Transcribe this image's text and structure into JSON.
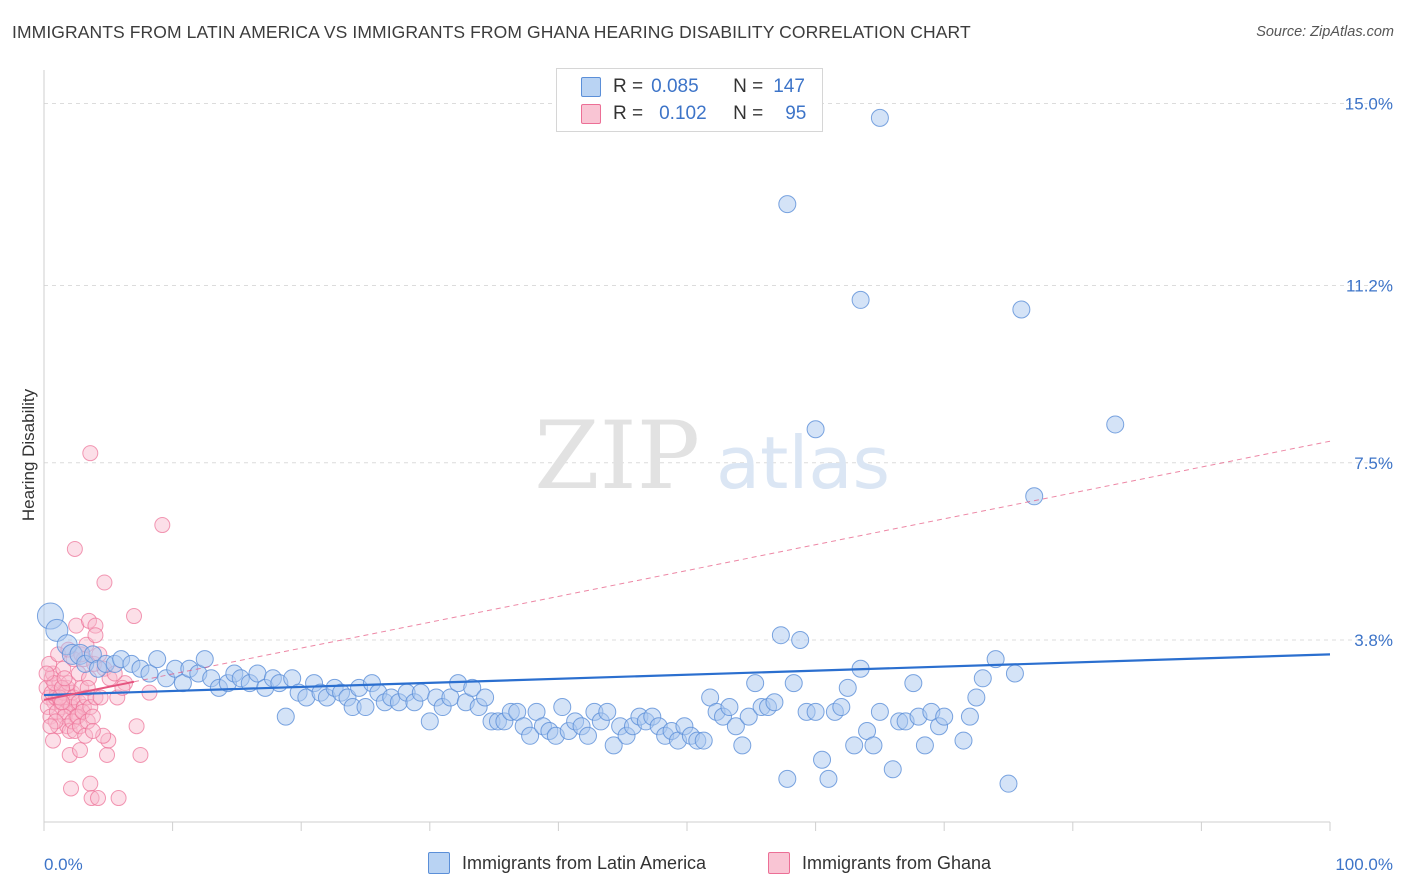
{
  "title": "IMMIGRANTS FROM LATIN AMERICA VS IMMIGRANTS FROM GHANA HEARING DISABILITY CORRELATION CHART",
  "source": "Source: ZipAtlas.com",
  "watermark": {
    "zip": "ZIP",
    "atlas": "atlas"
  },
  "legend": {
    "rows": [
      {
        "r_label": "R =",
        "r_value": "0.085",
        "n_label": "N =",
        "n_value": "147"
      },
      {
        "r_label": "R =",
        "r_value": "0.102",
        "n_label": "N =",
        "n_value": "95"
      }
    ]
  },
  "bottom_legend": [
    "Immigrants from Latin America",
    "Immigrants from Ghana"
  ],
  "colors": {
    "blue_fill": "#a9c8f0",
    "blue_stroke": "#5b8fd8",
    "blue_line": "#2b6fcf",
    "pink_fill": "#f8b9cb",
    "pink_stroke": "#ec6f96",
    "pink_line": "#e5547f",
    "tick_text": "#3d74c8",
    "grid": "#dcdcdc"
  },
  "chart_data": {
    "type": "scatter",
    "title": "IMMIGRANTS FROM LATIN AMERICA VS IMMIGRANTS FROM GHANA HEARING DISABILITY CORRELATION CHART",
    "xlabel": "",
    "ylabel": "Hearing Disability",
    "x_unit": "%",
    "y_unit": "%",
    "xlim": [
      0,
      100
    ],
    "ylim": [
      0,
      15.7
    ],
    "x_tick_labels": [
      {
        "value": 0,
        "label": "0.0%"
      },
      {
        "value": 100,
        "label": "100.0%"
      }
    ],
    "y_tick_labels": [
      {
        "value": 3.8,
        "label": "3.8%"
      },
      {
        "value": 7.5,
        "label": "7.5%"
      },
      {
        "value": 11.2,
        "label": "11.2%"
      },
      {
        "value": 15.0,
        "label": "15.0%"
      }
    ],
    "grid": true,
    "legend_position": "top-center",
    "series": [
      {
        "name": "Immigrants from Latin America",
        "color": "#5b8fd8",
        "R": 0.085,
        "N": 147,
        "trend": {
          "x": [
            0,
            100
          ],
          "y": [
            2.65,
            3.5
          ]
        },
        "points": [
          [
            0.5,
            4.3
          ],
          [
            1.0,
            4.0
          ],
          [
            1.8,
            3.7
          ],
          [
            2.2,
            3.5
          ],
          [
            2.8,
            3.5
          ],
          [
            3.2,
            3.3
          ],
          [
            3.8,
            3.5
          ],
          [
            4.2,
            3.2
          ],
          [
            4.8,
            3.3
          ],
          [
            5.5,
            3.3
          ],
          [
            6.0,
            3.4
          ],
          [
            6.8,
            3.3
          ],
          [
            7.5,
            3.2
          ],
          [
            8.2,
            3.1
          ],
          [
            8.8,
            3.4
          ],
          [
            9.5,
            3.0
          ],
          [
            10.2,
            3.2
          ],
          [
            10.8,
            2.9
          ],
          [
            11.3,
            3.2
          ],
          [
            12.0,
            3.1
          ],
          [
            12.5,
            3.4
          ],
          [
            13.0,
            3.0
          ],
          [
            13.6,
            2.8
          ],
          [
            14.3,
            2.9
          ],
          [
            14.8,
            3.1
          ],
          [
            15.3,
            3.0
          ],
          [
            16.0,
            2.9
          ],
          [
            16.6,
            3.1
          ],
          [
            17.2,
            2.8
          ],
          [
            17.8,
            3.0
          ],
          [
            18.3,
            2.9
          ],
          [
            18.8,
            2.2
          ],
          [
            19.3,
            3.0
          ],
          [
            19.8,
            2.7
          ],
          [
            20.4,
            2.6
          ],
          [
            21.0,
            2.9
          ],
          [
            21.5,
            2.7
          ],
          [
            22.0,
            2.6
          ],
          [
            22.6,
            2.8
          ],
          [
            23.1,
            2.7
          ],
          [
            23.6,
            2.6
          ],
          [
            24.0,
            2.4
          ],
          [
            24.5,
            2.8
          ],
          [
            25.0,
            2.4
          ],
          [
            25.5,
            2.9
          ],
          [
            26.0,
            2.7
          ],
          [
            26.5,
            2.5
          ],
          [
            27.0,
            2.6
          ],
          [
            27.6,
            2.5
          ],
          [
            28.2,
            2.7
          ],
          [
            28.8,
            2.5
          ],
          [
            29.3,
            2.7
          ],
          [
            30.0,
            2.1
          ],
          [
            30.5,
            2.6
          ],
          [
            31.0,
            2.4
          ],
          [
            31.6,
            2.6
          ],
          [
            32.2,
            2.9
          ],
          [
            32.8,
            2.5
          ],
          [
            33.3,
            2.8
          ],
          [
            33.8,
            2.4
          ],
          [
            34.3,
            2.6
          ],
          [
            34.8,
            2.1
          ],
          [
            35.3,
            2.1
          ],
          [
            35.8,
            2.1
          ],
          [
            36.3,
            2.3
          ],
          [
            36.8,
            2.3
          ],
          [
            37.3,
            2.0
          ],
          [
            37.8,
            1.8
          ],
          [
            38.3,
            2.3
          ],
          [
            38.8,
            2.0
          ],
          [
            39.3,
            1.9
          ],
          [
            39.8,
            1.8
          ],
          [
            40.3,
            2.4
          ],
          [
            40.8,
            1.9
          ],
          [
            41.3,
            2.1
          ],
          [
            41.8,
            2.0
          ],
          [
            42.3,
            1.8
          ],
          [
            42.8,
            2.3
          ],
          [
            43.3,
            2.1
          ],
          [
            43.8,
            2.3
          ],
          [
            44.3,
            1.6
          ],
          [
            44.8,
            2.0
          ],
          [
            45.3,
            1.8
          ],
          [
            45.8,
            2.0
          ],
          [
            46.3,
            2.2
          ],
          [
            46.8,
            2.1
          ],
          [
            47.3,
            2.2
          ],
          [
            47.8,
            2.0
          ],
          [
            48.3,
            1.8
          ],
          [
            48.8,
            1.9
          ],
          [
            49.3,
            1.7
          ],
          [
            49.8,
            2.0
          ],
          [
            50.3,
            1.8
          ],
          [
            50.8,
            1.7
          ],
          [
            51.3,
            1.7
          ],
          [
            51.8,
            2.6
          ],
          [
            52.3,
            2.3
          ],
          [
            52.8,
            2.2
          ],
          [
            53.3,
            2.4
          ],
          [
            53.8,
            2.0
          ],
          [
            54.3,
            1.6
          ],
          [
            54.8,
            2.2
          ],
          [
            55.3,
            2.9
          ],
          [
            55.8,
            2.4
          ],
          [
            56.3,
            2.4
          ],
          [
            56.8,
            2.5
          ],
          [
            57.3,
            3.9
          ],
          [
            57.8,
            0.9
          ],
          [
            58.3,
            2.9
          ],
          [
            58.8,
            3.8
          ],
          [
            59.3,
            2.3
          ],
          [
            60.0,
            2.3
          ],
          [
            60.5,
            1.3
          ],
          [
            61.0,
            0.9
          ],
          [
            61.5,
            2.3
          ],
          [
            62.0,
            2.4
          ],
          [
            62.5,
            2.8
          ],
          [
            63.0,
            1.6
          ],
          [
            63.5,
            3.2
          ],
          [
            64.0,
            1.9
          ],
          [
            64.5,
            1.6
          ],
          [
            65.0,
            2.3
          ],
          [
            66.0,
            1.1
          ],
          [
            66.5,
            2.1
          ],
          [
            67.0,
            2.1
          ],
          [
            67.6,
            2.9
          ],
          [
            68.0,
            2.2
          ],
          [
            68.5,
            1.6
          ],
          [
            69.0,
            2.3
          ],
          [
            69.6,
            2.0
          ],
          [
            70.0,
            2.2
          ],
          [
            71.5,
            1.7
          ],
          [
            72.0,
            2.2
          ],
          [
            72.5,
            2.6
          ],
          [
            73.0,
            3.0
          ],
          [
            74.0,
            3.4
          ],
          [
            75.0,
            0.8
          ],
          [
            75.5,
            3.1
          ],
          [
            57.8,
            12.9
          ],
          [
            60.0,
            8.2
          ],
          [
            63.5,
            10.9
          ],
          [
            65.0,
            14.7
          ],
          [
            76.0,
            10.7
          ],
          [
            77.0,
            6.8
          ],
          [
            83.3,
            8.3
          ]
        ]
      },
      {
        "name": "Immigrants from Ghana",
        "color": "#ec6f96",
        "R": 0.102,
        "N": 95,
        "trend": {
          "x": [
            0,
            100
          ],
          "y": [
            2.55,
            7.95
          ]
        },
        "trend_solid_to_x": 7,
        "points": [
          [
            0.2,
            2.8
          ],
          [
            0.4,
            2.6
          ],
          [
            0.6,
            3.0
          ],
          [
            0.8,
            2.5
          ],
          [
            1.0,
            2.7
          ],
          [
            1.2,
            2.9
          ],
          [
            1.4,
            2.4
          ],
          [
            1.6,
            2.6
          ],
          [
            1.8,
            2.8
          ],
          [
            2.0,
            2.5
          ],
          [
            2.2,
            2.7
          ],
          [
            2.4,
            2.3
          ],
          [
            0.3,
            2.4
          ],
          [
            0.5,
            2.2
          ],
          [
            0.7,
            3.1
          ],
          [
            0.9,
            2.6
          ],
          [
            1.1,
            2.0
          ],
          [
            1.3,
            2.5
          ],
          [
            1.5,
            2.7
          ],
          [
            1.7,
            2.3
          ],
          [
            1.9,
            2.9
          ],
          [
            2.1,
            2.4
          ],
          [
            2.3,
            2.6
          ],
          [
            2.5,
            2.2
          ],
          [
            2.7,
            2.5
          ],
          [
            2.9,
            2.8
          ],
          [
            3.1,
            2.4
          ],
          [
            3.3,
            2.6
          ],
          [
            0.6,
            2.7
          ],
          [
            0.8,
            2.9
          ],
          [
            1.0,
            2.3
          ],
          [
            1.2,
            2.6
          ],
          [
            1.4,
            2.8
          ],
          [
            1.6,
            2.2
          ],
          [
            1.8,
            2.0
          ],
          [
            2.0,
            1.9
          ],
          [
            2.2,
            2.1
          ],
          [
            2.4,
            1.9
          ],
          [
            2.6,
            2.2
          ],
          [
            2.8,
            2.0
          ],
          [
            3.0,
            2.3
          ],
          [
            3.2,
            1.8
          ],
          [
            3.4,
            2.1
          ],
          [
            3.6,
            2.4
          ],
          [
            3.8,
            2.2
          ],
          [
            4.0,
            2.6
          ],
          [
            0.4,
            3.3
          ],
          [
            1.1,
            3.5
          ],
          [
            1.5,
            3.2
          ],
          [
            1.9,
            3.6
          ],
          [
            2.3,
            3.4
          ],
          [
            2.7,
            3.1
          ],
          [
            3.1,
            3.4
          ],
          [
            3.5,
            3.0
          ],
          [
            3.9,
            3.3
          ],
          [
            4.3,
            3.5
          ],
          [
            4.7,
            3.2
          ],
          [
            5.1,
            3.0
          ],
          [
            2.5,
            4.1
          ],
          [
            3.5,
            4.2
          ],
          [
            4.0,
            4.1
          ],
          [
            2.4,
            5.7
          ],
          [
            4.7,
            5.0
          ],
          [
            7.0,
            4.3
          ],
          [
            9.2,
            6.2
          ],
          [
            3.6,
            7.7
          ],
          [
            2.0,
            1.4
          ],
          [
            2.8,
            1.5
          ],
          [
            4.9,
            1.4
          ],
          [
            7.5,
            1.4
          ],
          [
            5.0,
            1.7
          ],
          [
            4.6,
            1.8
          ],
          [
            2.1,
            0.7
          ],
          [
            3.6,
            0.8
          ],
          [
            3.7,
            0.5
          ],
          [
            4.2,
            0.5
          ],
          [
            5.8,
            0.5
          ],
          [
            3.4,
            2.8
          ],
          [
            5.7,
            2.6
          ],
          [
            6.3,
            2.9
          ],
          [
            1.4,
            2.5
          ],
          [
            0.9,
            2.1
          ],
          [
            3.8,
            1.9
          ],
          [
            4.4,
            2.6
          ],
          [
            7.2,
            2.0
          ],
          [
            8.2,
            2.7
          ],
          [
            5.5,
            3.1
          ],
          [
            6.1,
            2.8
          ],
          [
            1.6,
            3.0
          ],
          [
            2.9,
            3.5
          ],
          [
            3.3,
            3.7
          ],
          [
            0.2,
            3.1
          ],
          [
            0.5,
            2.0
          ],
          [
            0.7,
            1.7
          ],
          [
            4.0,
            3.9
          ]
        ]
      }
    ]
  }
}
